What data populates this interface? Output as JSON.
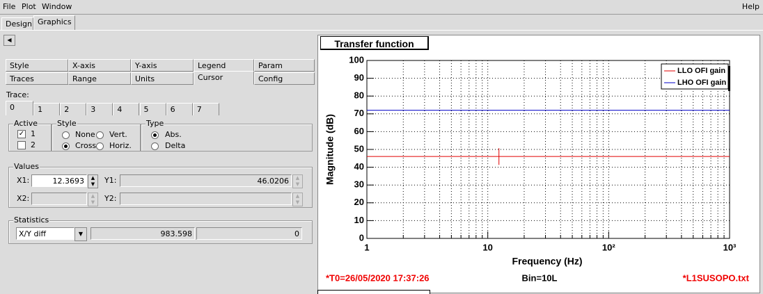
{
  "menu": [
    "File",
    "Plot",
    "Window"
  ],
  "help": "Help",
  "tabs": [
    "Design",
    "Graphics"
  ],
  "option_tabs": [
    [
      "Style",
      "X-axis",
      "Y-axis",
      "Legend",
      "Param"
    ],
    [
      "Traces",
      "Range",
      "Units",
      "Cursor",
      "Config"
    ]
  ],
  "trace_label": "Trace:",
  "trace_tabs": [
    "0",
    "1",
    "2",
    "3",
    "4",
    "5",
    "6",
    "7"
  ],
  "active": {
    "title": "Active",
    "items": [
      "1",
      "2"
    ]
  },
  "style": {
    "title": "Style",
    "options": [
      "None",
      "Vert.",
      "Cross",
      "Horiz."
    ]
  },
  "type": {
    "title": "Type",
    "options": [
      "Abs.",
      "Delta"
    ]
  },
  "values": {
    "title": "Values",
    "x1_label": "X1:",
    "x1": 12.3693,
    "y1_label": "Y1:",
    "y1": 46.0206,
    "x2_label": "X2:",
    "y2_label": "Y2:"
  },
  "statistics": {
    "title": "Statistics",
    "mode": "X/Y diff",
    "value1": 983.598,
    "value2": 0
  },
  "chart_data": {
    "type": "line",
    "title": "Transfer function",
    "x_label": "Frequency (Hz)",
    "y_label": "Magnitude (dB)",
    "x": [
      1,
      1000
    ],
    "series": [
      {
        "name": "LLO OFI gain",
        "color": "#e00000",
        "values": [
          46.0206,
          46.0206
        ]
      },
      {
        "name": "LHO OFI gain",
        "color": "#0000c8",
        "values": [
          72,
          72
        ]
      }
    ],
    "xlim": [
      1,
      1000
    ],
    "x_log": true,
    "xticks": [
      1,
      10,
      {
        "value": 100,
        "label": "10²"
      },
      {
        "value": 1000,
        "label": "10³"
      }
    ],
    "x_minor_ticks": [
      2,
      3,
      4,
      5,
      6,
      7,
      8,
      9,
      20,
      30,
      40,
      50,
      60,
      70,
      80,
      90,
      200,
      300,
      400,
      500,
      600,
      700,
      800,
      900
    ],
    "ylim": [
      0,
      100
    ],
    "yticks": [
      0,
      10,
      20,
      30,
      40,
      50,
      60,
      70,
      80,
      90,
      100
    ],
    "grid": true,
    "legend": "top-right"
  },
  "footer": {
    "left": "*T0=26/05/2020 17:37:26",
    "center": "Bin=10L",
    "right": "*L1SUSOPO.txt"
  }
}
